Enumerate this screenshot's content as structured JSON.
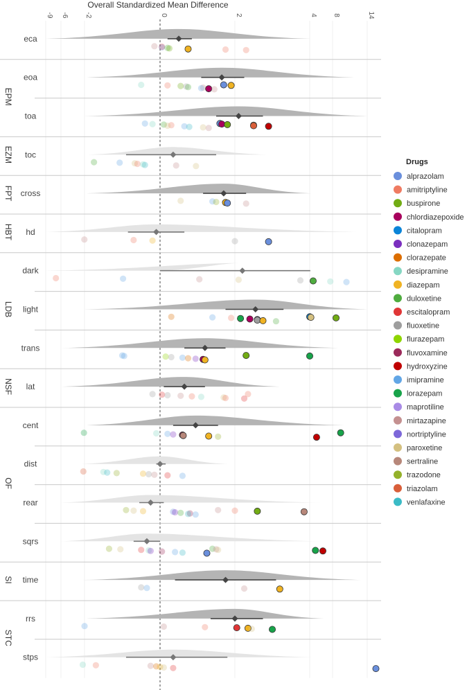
{
  "chart_data": {
    "type": "scatter",
    "title": "Overall Standardized Mean Difference",
    "x_scale": "nonlinear (compressed beyond -2 and 4)",
    "x_ticks": [
      -9,
      -6,
      -2,
      0,
      2,
      4,
      8,
      14
    ],
    "reference_line": 0,
    "grid": true,
    "legend": {
      "title": "Drugs",
      "placement": "right"
    },
    "drug_colors": {
      "alprazolam": "#6a8fdc",
      "amitriptyline": "#ef7b62",
      "buspirone": "#72ac14",
      "chlordiazepoxide": "#a8005d",
      "citalopram": "#0b84d8",
      "clonazepam": "#7b2fbf",
      "clorazepate": "#dc6e00",
      "desipramine": "#86d7c3",
      "diazepam": "#f0b323",
      "duloxetine": "#4fac3f",
      "escitalopram": "#e03636",
      "fluoxetine": "#9e9e9e",
      "flurazepam": "#8ed500",
      "fluvoxamine": "#9b2a5a",
      "hydroxyzine": "#c00000",
      "imipramine": "#62a6e6",
      "lorazepam": "#18a34a",
      "maprotiline": "#a98be6",
      "mirtazapine": "#c49090",
      "nortriptyline": "#7d68d9",
      "paroxetine": "#d4c080",
      "sertraline": "#b7877a",
      "trazodone": "#94b12a",
      "triazolam": "#d95f3a",
      "venlafaxine": "#3bbbc6"
    },
    "rows": [
      {
        "group": "",
        "label": "eca",
        "mean": 0.5,
        "ci": [
          0.2,
          0.85
        ],
        "density": "dark",
        "range": [
          -9,
          4.2
        ],
        "points": [
          [
            "mirtazapine",
            -0.15,
            0
          ],
          [
            "escitalopram",
            0.05,
            0
          ],
          [
            "alprazolam",
            0.05,
            0
          ],
          [
            "duloxetine",
            0.2,
            0
          ],
          [
            "buspirone",
            0.25,
            0
          ],
          [
            "diazepam",
            0.75,
            1
          ],
          [
            "amitriptyline",
            1.75,
            0
          ],
          [
            "amitriptyline",
            2.3,
            0
          ]
        ]
      },
      {
        "group": "EPM",
        "label": "eoa",
        "mean": 1.65,
        "ci": [
          1.1,
          2.25
        ],
        "density": "dark",
        "range": [
          -2,
          12
        ],
        "points": [
          [
            "desipramine",
            -0.5,
            0
          ],
          [
            "amitriptyline",
            0.2,
            0
          ],
          [
            "buspirone",
            0.55,
            0
          ],
          [
            "fluoxetine",
            0.7,
            0
          ],
          [
            "duloxetine",
            0.75,
            0
          ],
          [
            "mirtazapine",
            1.15,
            0
          ],
          [
            "imipramine",
            1.1,
            0
          ],
          [
            "chlordiazepoxide",
            1.3,
            1
          ],
          [
            "mirtazapine",
            1.45,
            0
          ],
          [
            "alprazolam",
            1.7,
            1
          ],
          [
            "diazepam",
            1.9,
            1
          ]
        ]
      },
      {
        "group": "EPM",
        "label": "toa",
        "mean": 2.1,
        "ci": [
          1.5,
          2.75
        ],
        "density": "dark",
        "range": [
          -2,
          14
        ],
        "points": [
          [
            "imipramine",
            -0.4,
            0
          ],
          [
            "desipramine",
            -0.2,
            0
          ],
          [
            "duloxetine",
            0.1,
            0
          ],
          [
            "amitriptyline",
            0.3,
            0
          ],
          [
            "paroxetine",
            0.2,
            0
          ],
          [
            "imipramine",
            0.65,
            0
          ],
          [
            "venlafaxine",
            0.78,
            0
          ],
          [
            "paroxetine",
            1.15,
            0
          ],
          [
            "mirtazapine",
            1.3,
            0
          ],
          [
            "alprazolam",
            1.6,
            1
          ],
          [
            "chlordiazepoxide",
            1.65,
            1
          ],
          [
            "buspirone",
            1.8,
            1
          ],
          [
            "diazepam",
            2.5,
            1
          ],
          [
            "triazolam",
            2.5,
            1
          ],
          [
            "hydroxyzine",
            2.9,
            1
          ]
        ]
      },
      {
        "group": "EZM",
        "label": "toc",
        "mean": 0.35,
        "ci": [
          -0.9,
          1.5
        ],
        "density": "light",
        "range": [
          -1.9,
          2.9
        ],
        "points": [
          [
            "duloxetine",
            -1.75,
            0
          ],
          [
            "imipramine",
            -1.07,
            0
          ],
          [
            "paroxetine",
            -0.67,
            0
          ],
          [
            "amitriptyline",
            -0.6,
            0
          ],
          [
            "desipramine",
            -0.45,
            0
          ],
          [
            "venlafaxine",
            -0.4,
            0
          ],
          [
            "mirtazapine",
            0.43,
            0
          ],
          [
            "paroxetine",
            0.96,
            0
          ]
        ]
      },
      {
        "group": "FPT",
        "label": "cross",
        "mean": 1.7,
        "ci": [
          1.15,
          2.3
        ],
        "density": "dark",
        "range": [
          -2,
          4.2
        ],
        "points": [
          [
            "paroxetine",
            0.55,
            0
          ],
          [
            "imipramine",
            1.4,
            0
          ],
          [
            "trazodone",
            1.5,
            0
          ],
          [
            "diazepam",
            1.75,
            1
          ],
          [
            "alprazolam",
            1.8,
            1
          ],
          [
            "mirtazapine",
            2.3,
            0
          ]
        ]
      },
      {
        "group": "HBT",
        "label": "hd",
        "mean": -0.1,
        "ci": [
          -0.85,
          0.65
        ],
        "density": "light",
        "range": [
          -9,
          13
        ],
        "points": [
          [
            "mirtazapine",
            -2.03,
            0
          ],
          [
            "amitriptyline",
            -0.7,
            0
          ],
          [
            "diazepam",
            -0.2,
            0
          ],
          [
            "fluoxetine",
            2.0,
            0
          ],
          [
            "alprazolam",
            2.9,
            1
          ]
        ]
      },
      {
        "group": "LDB",
        "label": "dark",
        "mean": 2.2,
        "ci": [
          0,
          4.1
        ],
        "density": "light",
        "range": [
          -9,
          0
        ],
        "points": [
          [
            "amitriptyline",
            -7,
            0
          ],
          [
            "imipramine",
            -0.98,
            0
          ],
          [
            "mirtazapine",
            1.05,
            0
          ],
          [
            "paroxetine",
            2.1,
            0
          ],
          [
            "fluoxetine",
            3.75,
            0
          ],
          [
            "duloxetine",
            4.6,
            1
          ],
          [
            "desipramine",
            7.6,
            0
          ],
          [
            "imipramine",
            10.4,
            0
          ]
        ]
      },
      {
        "group": "LDB",
        "label": "light",
        "mean": 2.55,
        "ci": [
          1.75,
          3.3
        ],
        "density": "dark",
        "range": [
          -2,
          14
        ],
        "points": [
          [
            "clorazepate",
            0.3,
            0
          ],
          [
            "imipramine",
            1.4,
            0
          ],
          [
            "amitriptyline",
            1.9,
            0
          ],
          [
            "lorazepam",
            2.15,
            1
          ],
          [
            "chlordiazepoxide",
            2.4,
            1
          ],
          [
            "alprazolam",
            2.6,
            1
          ],
          [
            "fluoxetine",
            2.6,
            1
          ],
          [
            "diazepam",
            2.75,
            1
          ],
          [
            "duloxetine",
            3.1,
            0
          ],
          [
            "citalopram",
            4.0,
            1
          ],
          [
            "paroxetine",
            4.2,
            1
          ],
          [
            "buspirone",
            8.6,
            1
          ]
        ]
      },
      {
        "group": "LDB",
        "label": "trans",
        "mean": 1.2,
        "ci": [
          0.65,
          1.75
        ],
        "density": "dark",
        "range": [
          -6,
          9
        ],
        "points": [
          [
            "imipramine",
            -1.0,
            0
          ],
          [
            "imipramine",
            -0.95,
            0
          ],
          [
            "flurazepam",
            0.15,
            0
          ],
          [
            "fluoxetine",
            0.3,
            0
          ],
          [
            "imipramine",
            0.6,
            0
          ],
          [
            "clorazepate",
            0.75,
            0
          ],
          [
            "clonazepam",
            0.95,
            0
          ],
          [
            "chlordiazepoxide",
            1.15,
            1
          ],
          [
            "diazepam",
            1.2,
            1
          ],
          [
            "buspirone",
            2.3,
            1
          ],
          [
            "lorazepam",
            4.0,
            1
          ]
        ]
      },
      {
        "group": "NSF",
        "label": "lat",
        "mean": 0.65,
        "ci": [
          0.1,
          1.2
        ],
        "density": "dark",
        "range": [
          -6,
          3.2
        ],
        "points": [
          [
            "fluoxetine",
            -0.2,
            0
          ],
          [
            "escitalopram",
            0.05,
            0
          ],
          [
            "fluoxetine",
            0.2,
            0
          ],
          [
            "mirtazapine",
            0.55,
            0
          ],
          [
            "amitriptyline",
            0.85,
            0
          ],
          [
            "desipramine",
            1.1,
            0
          ],
          [
            "paroxetine",
            1.7,
            0
          ],
          [
            "amitriptyline",
            1.75,
            0
          ],
          [
            "escitalopram",
            2.25,
            0
          ],
          [
            "amitriptyline",
            2.35,
            0
          ]
        ]
      },
      {
        "group": "OF",
        "label": "cent",
        "mean": 0.95,
        "ci": [
          0.35,
          1.55
        ],
        "density": "dark",
        "range": [
          -2.1,
          10
        ],
        "points": [
          [
            "lorazepam",
            -2.1,
            0
          ],
          [
            "desipramine",
            -0.1,
            0
          ],
          [
            "imipramine",
            0.2,
            0
          ],
          [
            "clonazepam",
            0.35,
            0
          ],
          [
            "fluvoxamine",
            0.6,
            1
          ],
          [
            "sertraline",
            0.62,
            1
          ],
          [
            "diazepam",
            1.3,
            1
          ],
          [
            "trazodone",
            1.55,
            0
          ],
          [
            "hydroxyzine",
            5.2,
            1
          ],
          [
            "lorazepam",
            9.4,
            1
          ]
        ]
      },
      {
        "group": "OF",
        "label": "dist",
        "mean": 0,
        "ci": [
          -0.1,
          0.15
        ],
        "density": "light",
        "range": [
          -2.5,
          1.8
        ],
        "points": [
          [
            "triazolam",
            -2.2,
            0
          ],
          [
            "desipramine",
            -1.5,
            0
          ],
          [
            "venlafaxine",
            -1.4,
            0
          ],
          [
            "trazodone",
            -1.15,
            0
          ],
          [
            "diazepam",
            -0.45,
            0
          ],
          [
            "fluoxetine",
            -0.3,
            0
          ],
          [
            "mirtazapine",
            -0.15,
            0
          ],
          [
            "escitalopram",
            0.2,
            0
          ],
          [
            "imipramine",
            0.6,
            0
          ]
        ]
      },
      {
        "group": "OF",
        "label": "rear",
        "mean": -0.25,
        "ci": [
          -0.55,
          0.1
        ],
        "density": "light",
        "range": [
          -6,
          6
        ],
        "points": [
          [
            "trazodone",
            -0.9,
            0
          ],
          [
            "paroxetine",
            -0.7,
            0
          ],
          [
            "diazepam",
            -0.45,
            0
          ],
          [
            "alprazolam",
            0.35,
            0
          ],
          [
            "clonazepam",
            0.4,
            0
          ],
          [
            "duloxetine",
            0.55,
            0
          ],
          [
            "fluvoxamine",
            0.8,
            0
          ],
          [
            "venlafaxine",
            0.75,
            0
          ],
          [
            "imipramine",
            0.95,
            0
          ],
          [
            "mirtazapine",
            1.55,
            0
          ],
          [
            "amitriptyline",
            2.0,
            0
          ],
          [
            "buspirone",
            2.6,
            1
          ],
          [
            "sertraline",
            3.85,
            1
          ]
        ]
      },
      {
        "group": "OF",
        "label": "sqrs",
        "mean": -0.35,
        "ci": [
          -0.7,
          0
        ],
        "density": "light",
        "range": [
          -6,
          6
        ],
        "points": [
          [
            "trazodone",
            -1.35,
            0
          ],
          [
            "paroxetine",
            -1.05,
            0
          ],
          [
            "escitalopram",
            -0.5,
            0
          ],
          [
            "desipramine",
            -0.3,
            0
          ],
          [
            "clonazepam",
            -0.25,
            0
          ],
          [
            "fluvoxamine",
            0.05,
            0
          ],
          [
            "imipramine",
            0.4,
            0
          ],
          [
            "venlafaxine",
            0.6,
            0
          ],
          [
            "alprazolam",
            1.25,
            1
          ],
          [
            "duloxetine",
            1.4,
            0
          ],
          [
            "mirtazapine",
            1.5,
            0
          ],
          [
            "paroxetine",
            1.55,
            0
          ],
          [
            "lorazepam",
            5.0,
            1
          ],
          [
            "hydroxyzine",
            6.3,
            1
          ]
        ]
      },
      {
        "group": "SI",
        "label": "time",
        "mean": 1.75,
        "ci": [
          0.4,
          3.1
        ],
        "density": "dark",
        "range": [
          -2.2,
          13
        ],
        "points": [
          [
            "fluoxetine",
            -0.5,
            0
          ],
          [
            "imipramine",
            -0.35,
            0
          ],
          [
            "mirtazapine",
            2.25,
            0
          ],
          [
            "diazepam",
            3.2,
            1
          ]
        ]
      },
      {
        "group": "STC",
        "label": "rrs",
        "mean": 2.0,
        "ci": [
          1.35,
          2.75
        ],
        "density": "dark",
        "range": [
          -2,
          6.5
        ],
        "points": [
          [
            "imipramine",
            -2.0,
            0
          ],
          [
            "mirtazapine",
            0.1,
            0
          ],
          [
            "amitriptyline",
            1.2,
            0
          ],
          [
            "escitalopram",
            2.05,
            1
          ],
          [
            "diazepam",
            2.35,
            1
          ],
          [
            "paroxetine",
            2.45,
            0
          ],
          [
            "lorazepam",
            3.0,
            1
          ]
        ]
      },
      {
        "group": "STC",
        "label": "stps",
        "mean": 0.35,
        "ci": [
          -0.9,
          1.8
        ],
        "density": "light",
        "range": [
          -9,
          4.5
        ],
        "points": [
          [
            "desipramine",
            -2.3,
            0
          ],
          [
            "amitriptyline",
            -1.7,
            0
          ],
          [
            "mirtazapine",
            -0.25,
            0
          ],
          [
            "clorazepate",
            -0.1,
            0
          ],
          [
            "diazepam",
            0,
            0
          ],
          [
            "paroxetine",
            0.1,
            0
          ],
          [
            "escitalopram",
            0.35,
            0
          ],
          [
            "alprazolam",
            15.5,
            1
          ]
        ]
      }
    ]
  }
}
